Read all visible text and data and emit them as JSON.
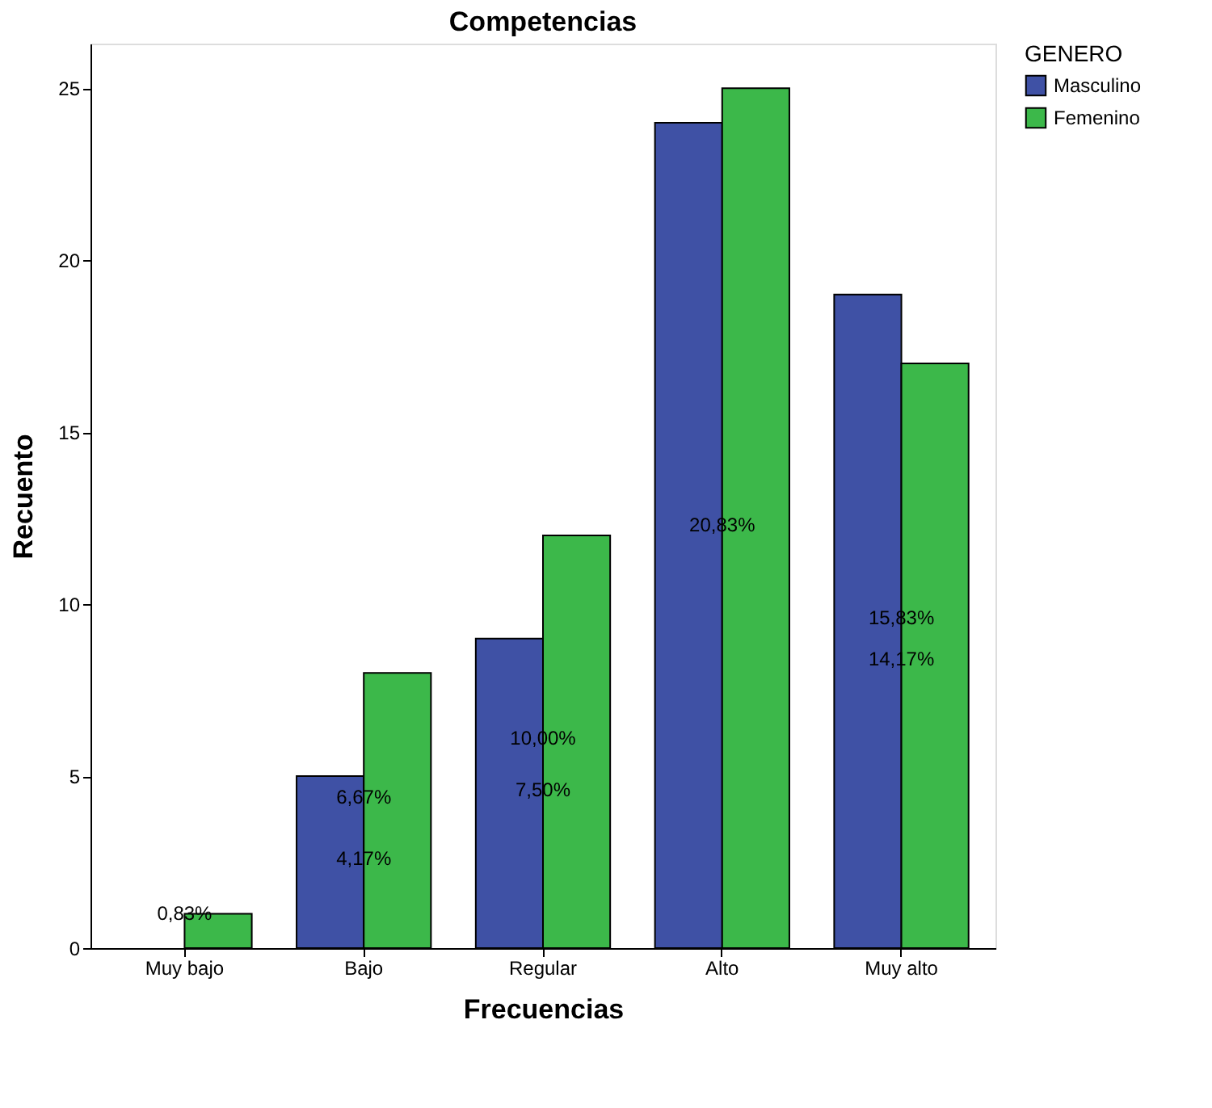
{
  "chart_data": {
    "type": "bar",
    "title": "Competencias",
    "xlabel": "Frecuencias",
    "ylabel": "Recuento",
    "legend_title": "GENERO",
    "categories": [
      "Muy bajo",
      "Bajo",
      "Regular",
      "Alto",
      "Muy alto"
    ],
    "series": [
      {
        "name": "Masculino",
        "color": "#3f51a5",
        "values": [
          0,
          5,
          9,
          24,
          19
        ]
      },
      {
        "name": "Femenino",
        "color": "#3cb84a",
        "values": [
          1,
          8,
          12,
          25,
          17
        ]
      }
    ],
    "annotations": [
      {
        "text": "0,83%",
        "x": "Muy bajo",
        "y": 1
      },
      {
        "text": "4,17%",
        "x": "Bajo",
        "y": 2.6
      },
      {
        "text": "6,67%",
        "x": "Bajo",
        "y": 4.4
      },
      {
        "text": "7,50%",
        "x": "Regular",
        "y": 4.6
      },
      {
        "text": "10,00%",
        "x": "Regular",
        "y": 6.1
      },
      {
        "text": "20,83%",
        "x": "Alto",
        "y": 12.3
      },
      {
        "text": "15,83%",
        "x": "Muy alto",
        "y": 9.6
      },
      {
        "text": "14,17%",
        "x": "Muy alto",
        "y": 8.4
      }
    ],
    "ylim": [
      0,
      26.3
    ],
    "yticks": [
      0,
      5,
      10,
      15,
      20,
      25
    ],
    "grid": false,
    "legend": "top right"
  }
}
